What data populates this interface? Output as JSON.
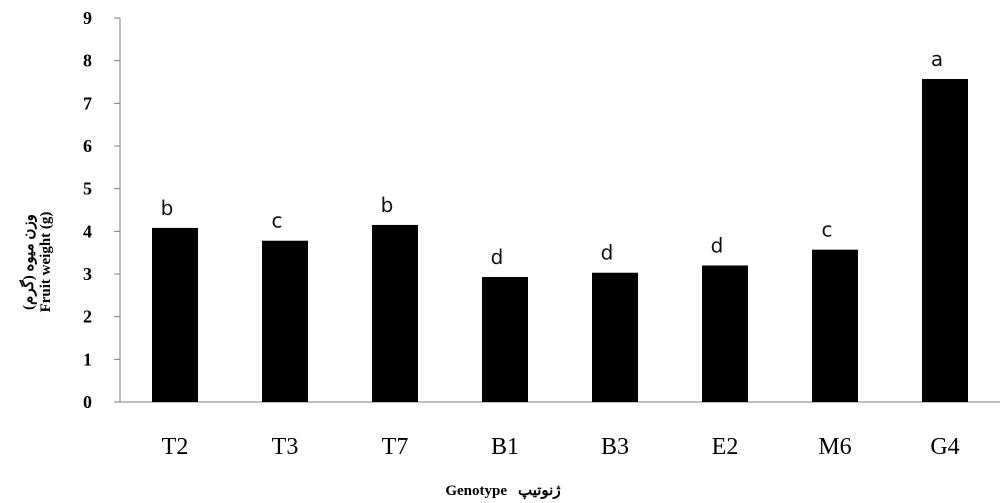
{
  "chart_data": {
    "type": "bar",
    "categories": [
      "T2",
      "T3",
      "T7",
      "B1",
      "B3",
      "E2",
      "M6",
      "G4"
    ],
    "values": [
      4.08,
      3.78,
      4.15,
      2.93,
      3.03,
      3.2,
      3.57,
      7.57
    ],
    "significance_letters": [
      "b",
      "c",
      "b",
      "d",
      "d",
      "d",
      "c",
      "a"
    ],
    "ylabel_fa": "وزن میوه (گرم)",
    "ylabel_en": "Fruit weight (g)",
    "xlabel_en": "Genotype",
    "xlabel_fa": "ژنوتیپ",
    "ylim": [
      0,
      9
    ],
    "yticks": [
      "0",
      "1",
      "2",
      "3",
      "4",
      "5",
      "6",
      "7",
      "8",
      "9"
    ],
    "bar_color": "#000000",
    "grid": false,
    "legend": "none"
  }
}
